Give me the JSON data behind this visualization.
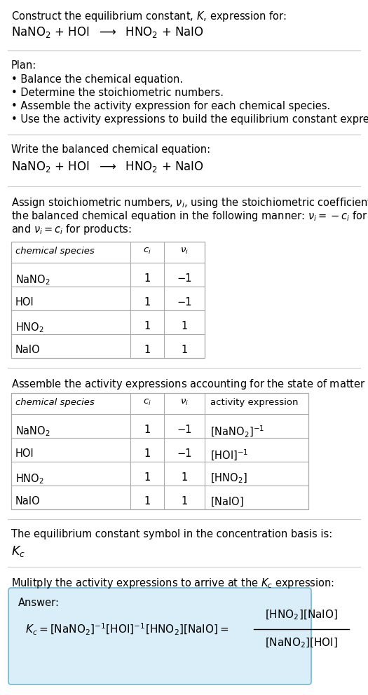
{
  "title_line1": "Construct the equilibrium constant, $K$, expression for:",
  "reaction_equation": "NaNO$_2$ + HOI  $\\longrightarrow$  HNO$_2$ + NaIO",
  "plan_header": "Plan:",
  "plan_bullets": [
    "• Balance the chemical equation.",
    "• Determine the stoichiometric numbers.",
    "• Assemble the activity expression for each chemical species.",
    "• Use the activity expressions to build the equilibrium constant expression."
  ],
  "balanced_header": "Write the balanced chemical equation:",
  "balanced_eq": "NaNO$_2$ + HOI  $\\longrightarrow$  HNO$_2$ + NaIO",
  "stoich_header_parts": [
    "Assign stoichiometric numbers, $\\nu_i$, using the stoichiometric coefficients, $c_i$, from",
    "the balanced chemical equation in the following manner: $\\nu_i = -c_i$ for reactants",
    "and $\\nu_i = c_i$ for products:"
  ],
  "table1_headers": [
    "chemical species",
    "$c_i$",
    "$\\nu_i$"
  ],
  "table1_rows": [
    [
      "NaNO$_2$",
      "1",
      "−1"
    ],
    [
      "HOI",
      "1",
      "−1"
    ],
    [
      "HNO$_2$",
      "1",
      "1"
    ],
    [
      "NaIO",
      "1",
      "1"
    ]
  ],
  "activity_header": "Assemble the activity expressions accounting for the state of matter and $\\nu_i$:",
  "table2_headers": [
    "chemical species",
    "$c_i$",
    "$\\nu_i$",
    "activity expression"
  ],
  "table2_rows": [
    [
      "NaNO$_2$",
      "1",
      "−1",
      "$[\\mathrm{NaNO_2}]^{-1}$"
    ],
    [
      "HOI",
      "1",
      "−1",
      "$[\\mathrm{HOI}]^{-1}$"
    ],
    [
      "HNO$_2$",
      "1",
      "1",
      "$[\\mathrm{HNO_2}]$"
    ],
    [
      "NaIO",
      "1",
      "1",
      "$[\\mathrm{NaIO}]$"
    ]
  ],
  "kc_symbol_header": "The equilibrium constant symbol in the concentration basis is:",
  "kc_symbol": "$K_c$",
  "multiply_header": "Mulitply the activity expressions to arrive at the $K_c$ expression:",
  "answer_label": "Answer:",
  "answer_eq_left": "$K_c = [\\mathrm{NaNO_2}]^{-1} [\\mathrm{HOI}]^{-1} [\\mathrm{HNO_2}] [\\mathrm{NaIO}] = $",
  "answer_num": "$[\\mathrm{HNO_2}] [\\mathrm{NaIO}]$",
  "answer_den": "$[\\mathrm{NaNO_2}] [\\mathrm{HOI}]$",
  "answer_box_color": "#daeef9",
  "answer_box_border": "#7bbdd4",
  "bg_color": "#ffffff",
  "text_color": "#000000",
  "table_border_color": "#aaaaaa",
  "separator_color": "#cccccc"
}
